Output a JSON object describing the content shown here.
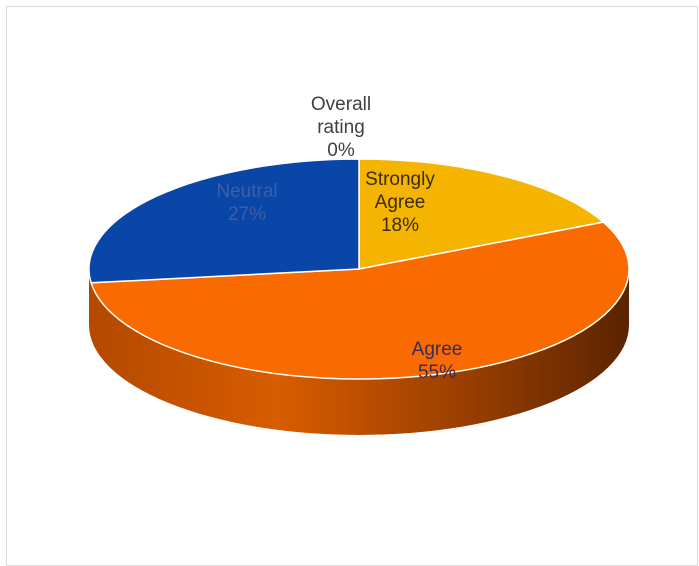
{
  "chart_data": {
    "type": "pie",
    "style": "3d",
    "legend": "none",
    "slices": [
      {
        "name": "Strongly Agree",
        "value": 18,
        "label_lines": [
          "Strongly",
          "Agree",
          "18%"
        ],
        "color": "#f4b400",
        "text_color": "#3a2e00"
      },
      {
        "name": "Agree",
        "value": 55,
        "label_lines": [
          "Agree",
          "55%"
        ],
        "color": "#f96a00",
        "text_color": "#3a2a55"
      },
      {
        "name": "Neutral",
        "value": 27,
        "label_lines": [
          "Neutral",
          "27%"
        ],
        "color": "#0a45a8",
        "text_color": "#3d5fa6"
      },
      {
        "name": "Overall rating",
        "value": 0,
        "label_lines": [
          "Overall",
          "rating",
          "0%"
        ],
        "color": "#a0a0a0",
        "text_color": "#404040"
      }
    ]
  }
}
